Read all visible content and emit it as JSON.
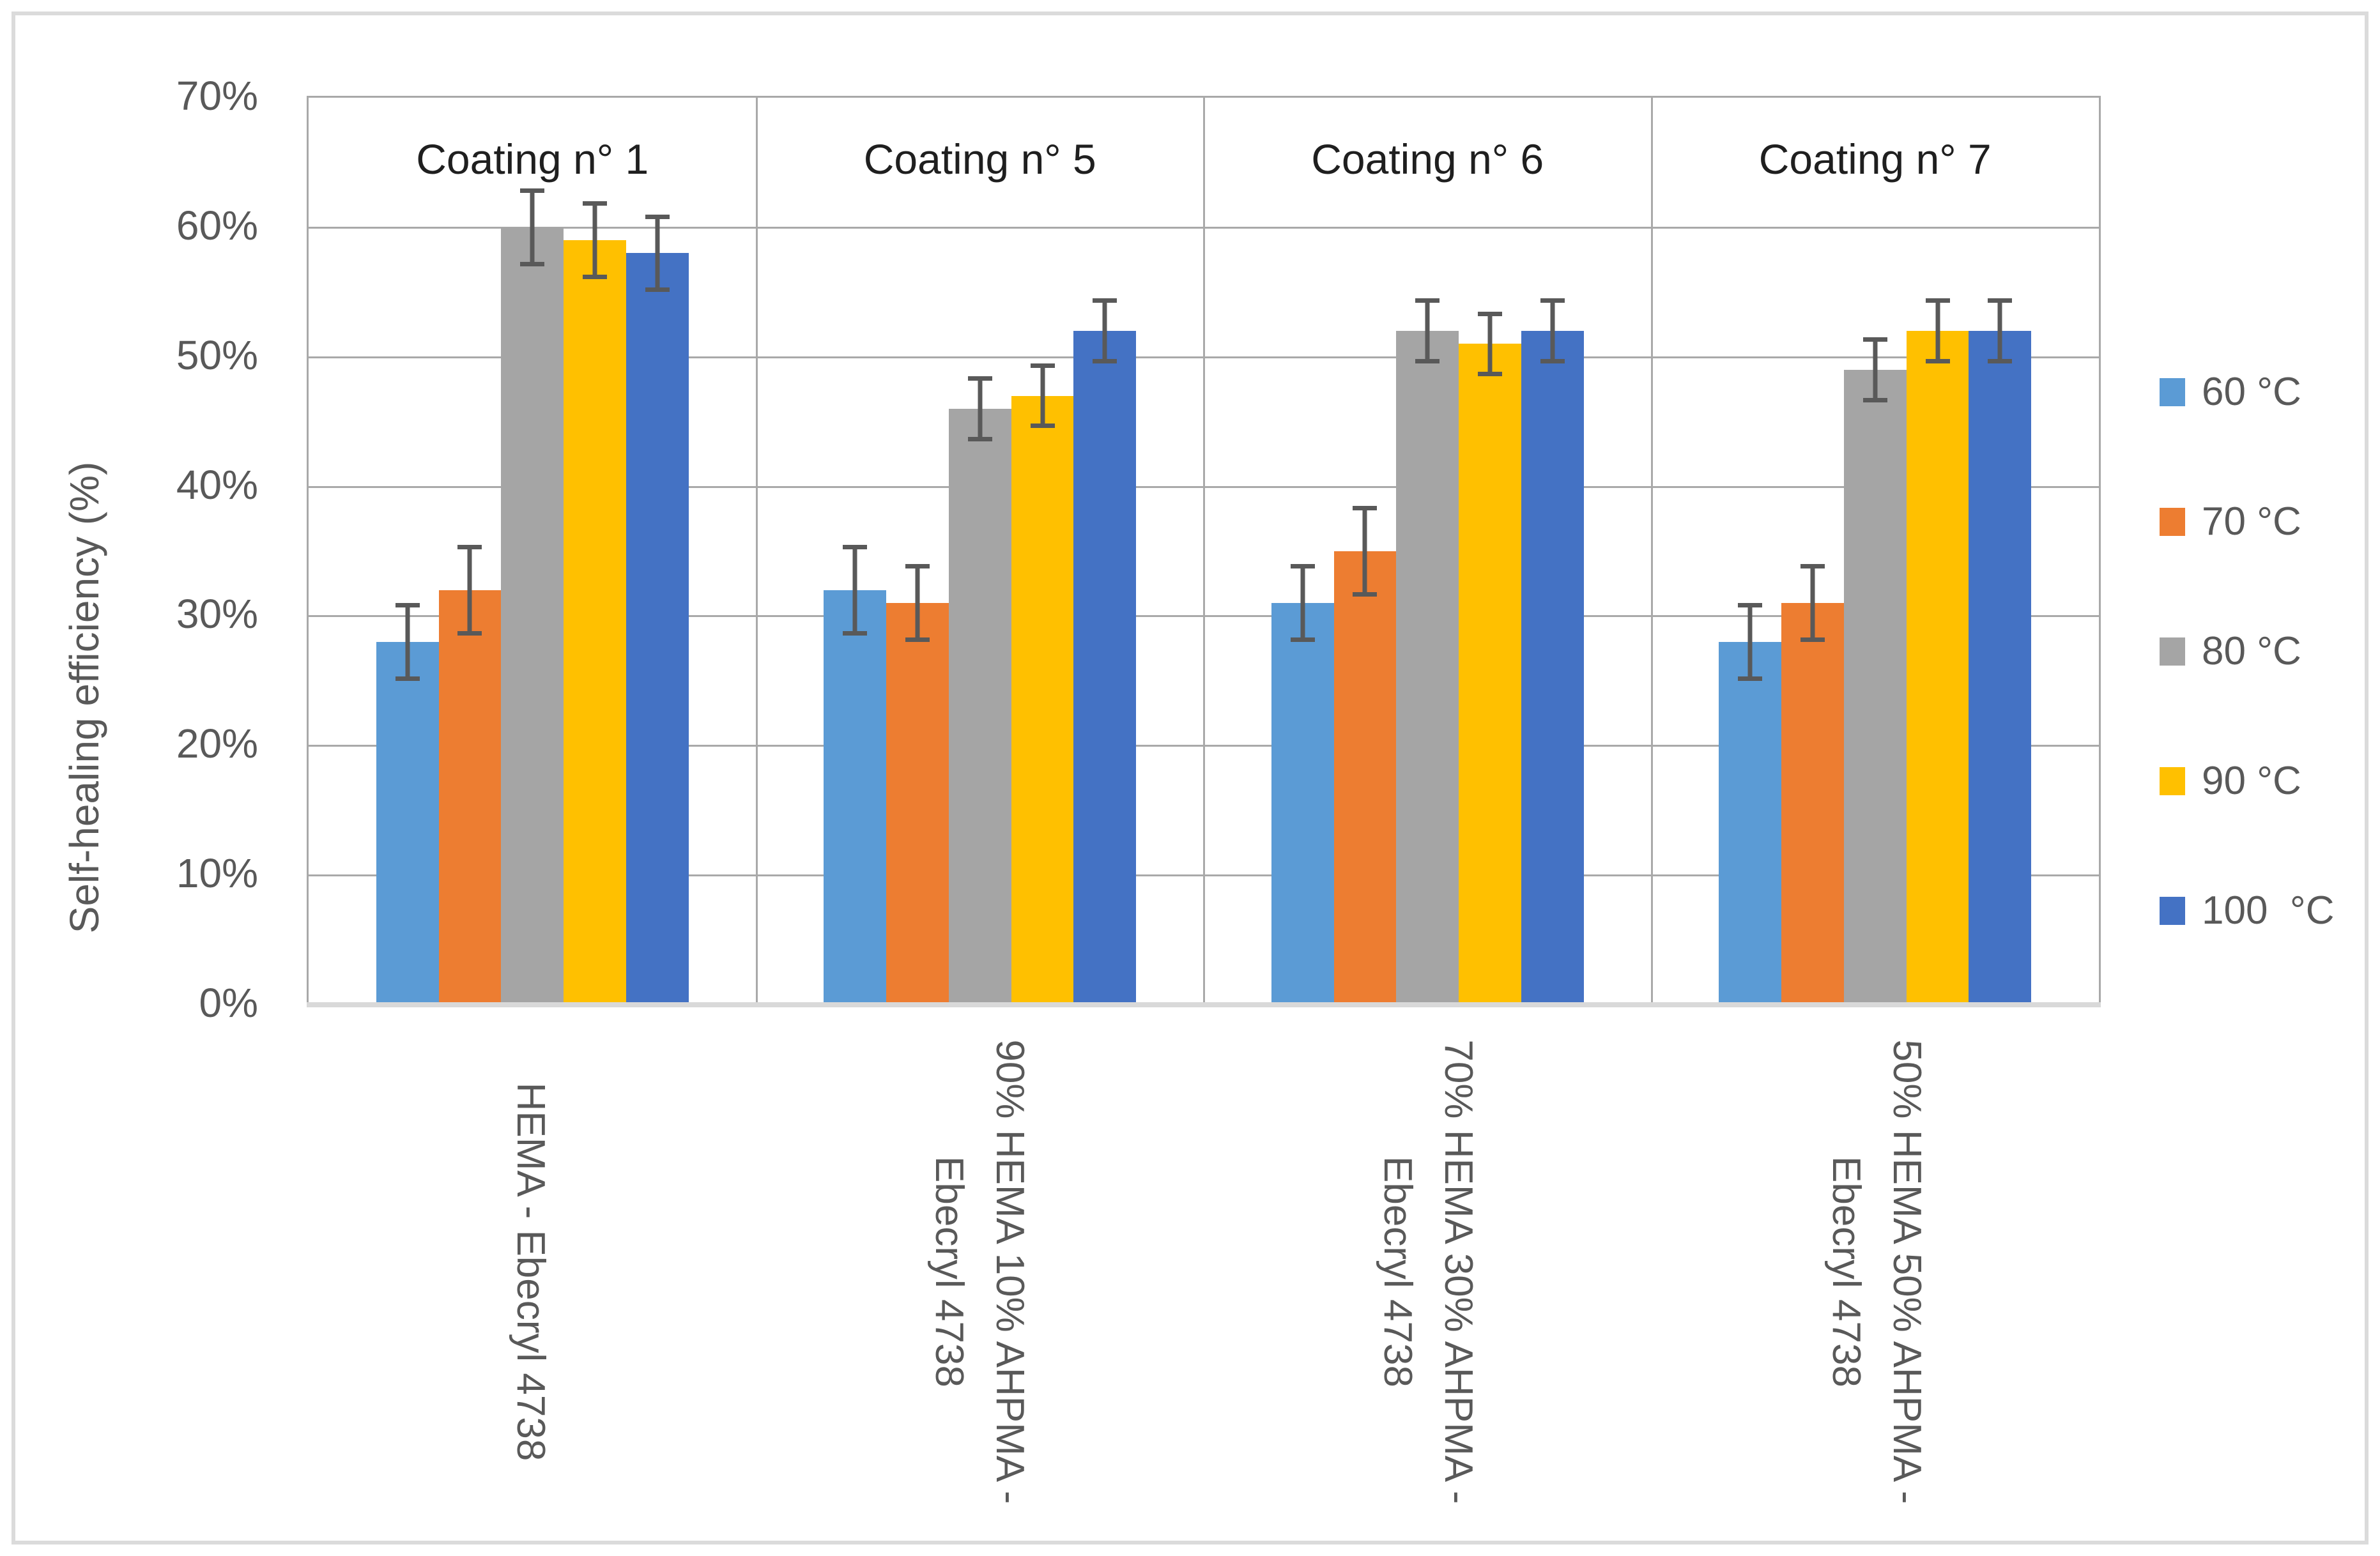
{
  "figure": {
    "background": "#FFFFFF",
    "frame_border_color": "#DBDBDB",
    "gridline_color": "#A9A9A9",
    "axis_line_color": "#D9D9D9",
    "text_color": "#595959",
    "group_title_color": "#1F1F1F"
  },
  "chart_data": {
    "type": "bar",
    "title": "",
    "xlabel": "",
    "ylabel": "Self-healing efficiency (%)",
    "ylim": [
      0,
      70
    ],
    "ytick_step": 10,
    "yticks": [
      "70%",
      "60%",
      "50%",
      "40%",
      "30%",
      "20%",
      "10%",
      "0%"
    ],
    "grid": true,
    "legend_position": "right",
    "group_titles": [
      "Coating n° 1",
      "Coating n° 5",
      "Coating n° 6",
      "Coating n° 7"
    ],
    "categories": [
      "HEMA - Ebecryl 4738",
      "90% HEMA 10% AHPMA - Ebecryl 4738",
      "70% HEMA 30% AHPMA - Ebecryl 4738",
      "50% HEMA 50% AHPMA - Ebecryl 4738"
    ],
    "series": [
      {
        "name": "60 °C",
        "color": "#5B9BD5",
        "values": [
          28,
          32,
          31,
          28
        ],
        "errors": [
          3,
          3.5,
          3,
          3
        ]
      },
      {
        "name": "70 °C",
        "color": "#ED7D31",
        "values": [
          32,
          31,
          35,
          31
        ],
        "errors": [
          3.5,
          3,
          3.5,
          3
        ]
      },
      {
        "name": "80 °C",
        "color": "#A5A5A5",
        "values": [
          60,
          46,
          52,
          49
        ],
        "errors": [
          3,
          2.5,
          2.5,
          2.5
        ]
      },
      {
        "name": "90 °C",
        "color": "#FFC000",
        "values": [
          59,
          47,
          51,
          52
        ],
        "errors": [
          3,
          2.5,
          2.5,
          2.5
        ]
      },
      {
        "name": "100  °C",
        "color": "#4472C4",
        "values": [
          58,
          52,
          52,
          52
        ],
        "errors": [
          3,
          2.5,
          2.5,
          2.5
        ]
      }
    ],
    "error_bar_color": "#595959"
  }
}
